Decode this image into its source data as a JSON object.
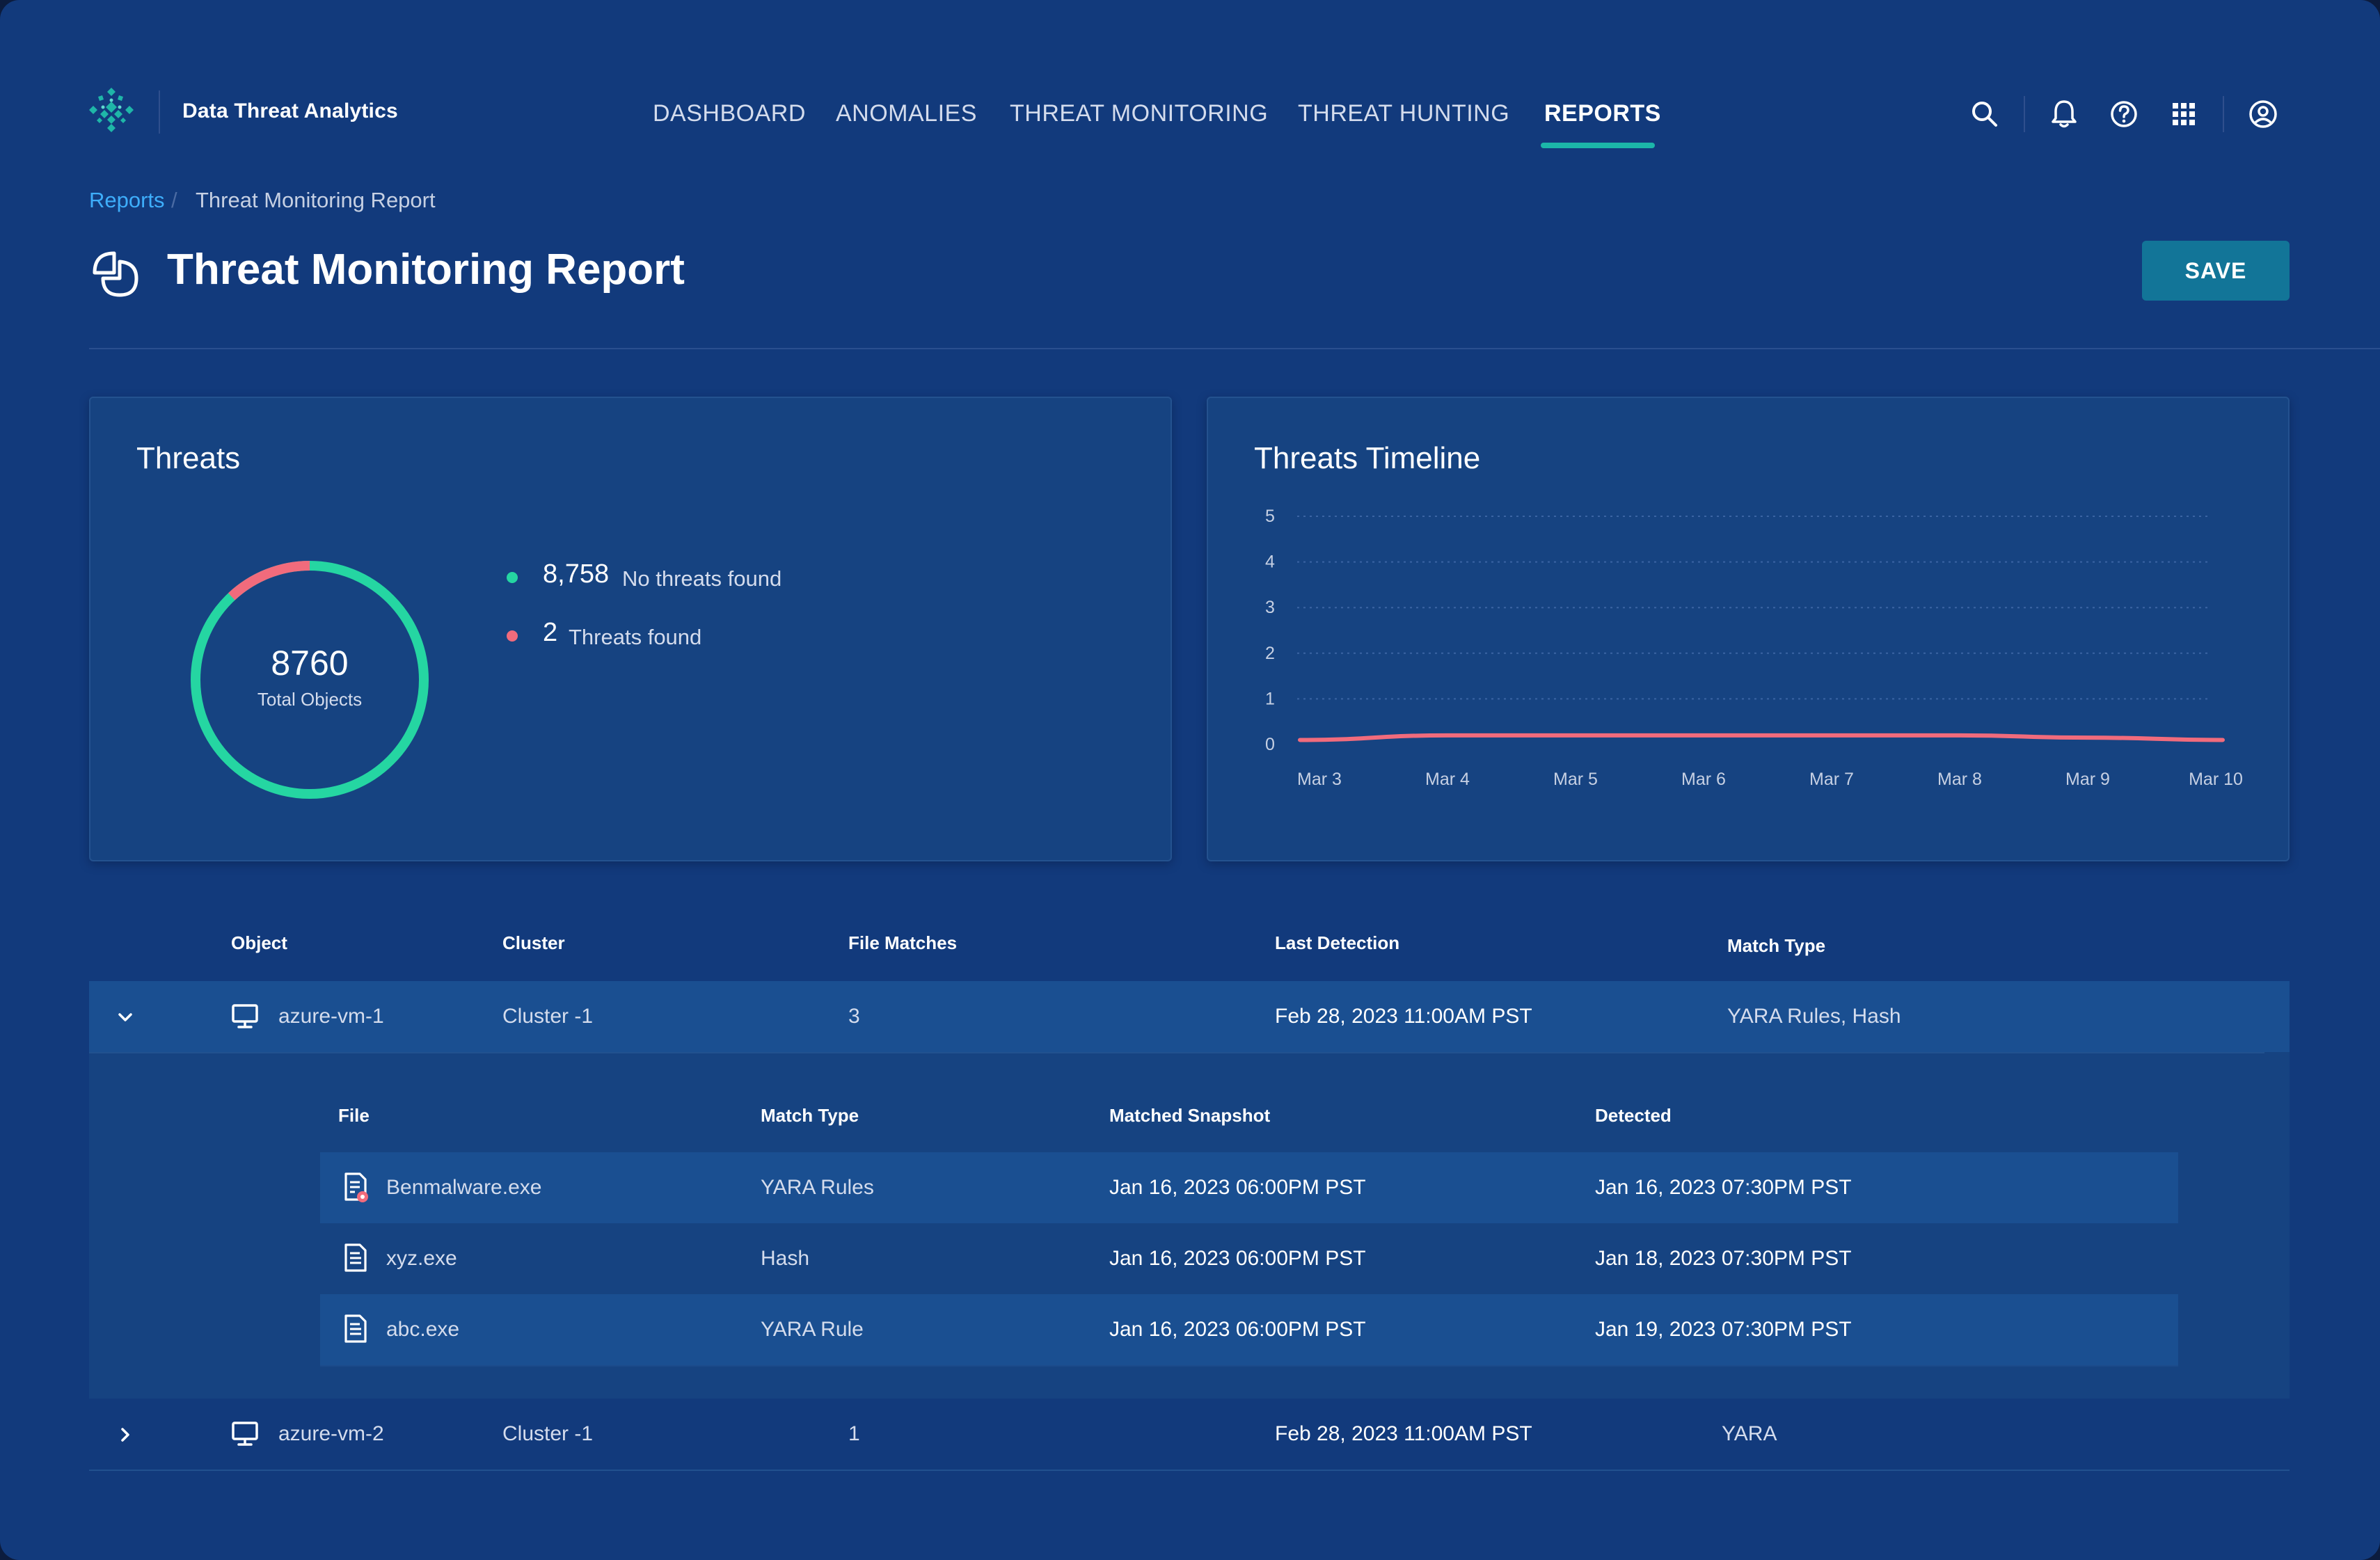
{
  "app": {
    "name": "Data Threat Analytics",
    "logo_icon": "dotted-diamond-logo-icon",
    "colors": {
      "accent": "#1cb6a9",
      "link": "#3eaefb",
      "background": "#123a7c",
      "save": "#127598"
    }
  },
  "nav": {
    "items": [
      {
        "label": "DASHBOARD"
      },
      {
        "label": "ANOMALIES"
      },
      {
        "label": "THREAT MONITORING"
      },
      {
        "label": "THREAT HUNTING"
      },
      {
        "label": "REPORTS",
        "active": true
      }
    ],
    "icons": [
      "search-icon",
      "bell-icon",
      "help-icon",
      "apps-grid-icon",
      "user-account-icon"
    ]
  },
  "breadcrumb": {
    "parent": "Reports",
    "separator": "/",
    "current": "Threat Monitoring Report"
  },
  "page": {
    "title": "Threat Monitoring Report",
    "icon": "report-leaf-icon",
    "save_label": "SAVE"
  },
  "threats_card": {
    "title": "Threats",
    "total": "8760",
    "total_label": "Total Objects",
    "legend": [
      {
        "count": "8,758",
        "label": "No threats found",
        "color": "#25d6a2"
      },
      {
        "count": "2",
        "label": "Threats found",
        "color": "#f16b7c"
      }
    ]
  },
  "timeline_card": {
    "title": "Threats Timeline"
  },
  "chart_data": [
    {
      "type": "pie",
      "title": "Threats",
      "center_value": 8760,
      "center_label": "Total Objects",
      "labels": [
        "No threats found",
        "Threats found"
      ],
      "values": [
        8758,
        2
      ],
      "colors": [
        "#25d6a2",
        "#f16b7c"
      ]
    },
    {
      "type": "line",
      "title": "Threats Timeline",
      "x": [
        "Mar 3",
        "Mar 4",
        "Mar 5",
        "Mar 6",
        "Mar 7",
        "Mar 8",
        "Mar 9",
        "Mar 10"
      ],
      "series": [
        {
          "values": [
            0.1,
            0.2,
            0.2,
            0.2,
            0.2,
            0.2,
            0.15,
            0.1
          ],
          "color": "#f16b7c"
        }
      ],
      "y_ticks": [
        "0",
        "1",
        "2",
        "3",
        "4",
        "5"
      ],
      "ylim": [
        0,
        5
      ],
      "grid": true
    }
  ],
  "table": {
    "headers": {
      "object": "Object",
      "cluster": "Cluster",
      "file_matches": "File Matches",
      "last_detection": "Last Detection",
      "match_type": "Match Type"
    },
    "rows": [
      {
        "expanded": true,
        "expander_icon": "chevron-down-icon",
        "object_icon": "monitor-icon",
        "object": "azure-vm-1",
        "cluster": "Cluster -1",
        "file_matches": "3",
        "last_detection": "Feb 28, 2023 11:00AM PST",
        "match_type": "YARA Rules, Hash"
      },
      {
        "expanded": false,
        "expander_icon": "chevron-right-icon",
        "object_icon": "monitor-icon",
        "object": "azure-vm-2",
        "cluster": "Cluster -1",
        "file_matches": "1",
        "last_detection": "Feb 28, 2023 11:00AM PST",
        "match_type": "YARA"
      }
    ],
    "sub_table": {
      "headers": {
        "file": "File",
        "match_type": "Match Type",
        "matched_snapshot": "Matched Snapshot",
        "detected": "Detected"
      },
      "rows": [
        {
          "file": "Benmalware.exe",
          "icon": "malware-file-icon",
          "match_type": "YARA Rules",
          "matched_snapshot": "Jan 16, 2023 06:00PM PST",
          "detected": "Jan 16, 2023 07:30PM PST"
        },
        {
          "file": "xyz.exe",
          "icon": "file-icon",
          "match_type": "Hash",
          "matched_snapshot": "Jan 16, 2023 06:00PM PST",
          "detected": "Jan 18, 2023 07:30PM PST"
        },
        {
          "file": "abc.exe",
          "icon": "file-icon",
          "match_type": "YARA Rule",
          "matched_snapshot": "Jan 16, 2023 06:00PM PST",
          "detected": "Jan 19, 2023 07:30PM PST"
        }
      ]
    }
  }
}
